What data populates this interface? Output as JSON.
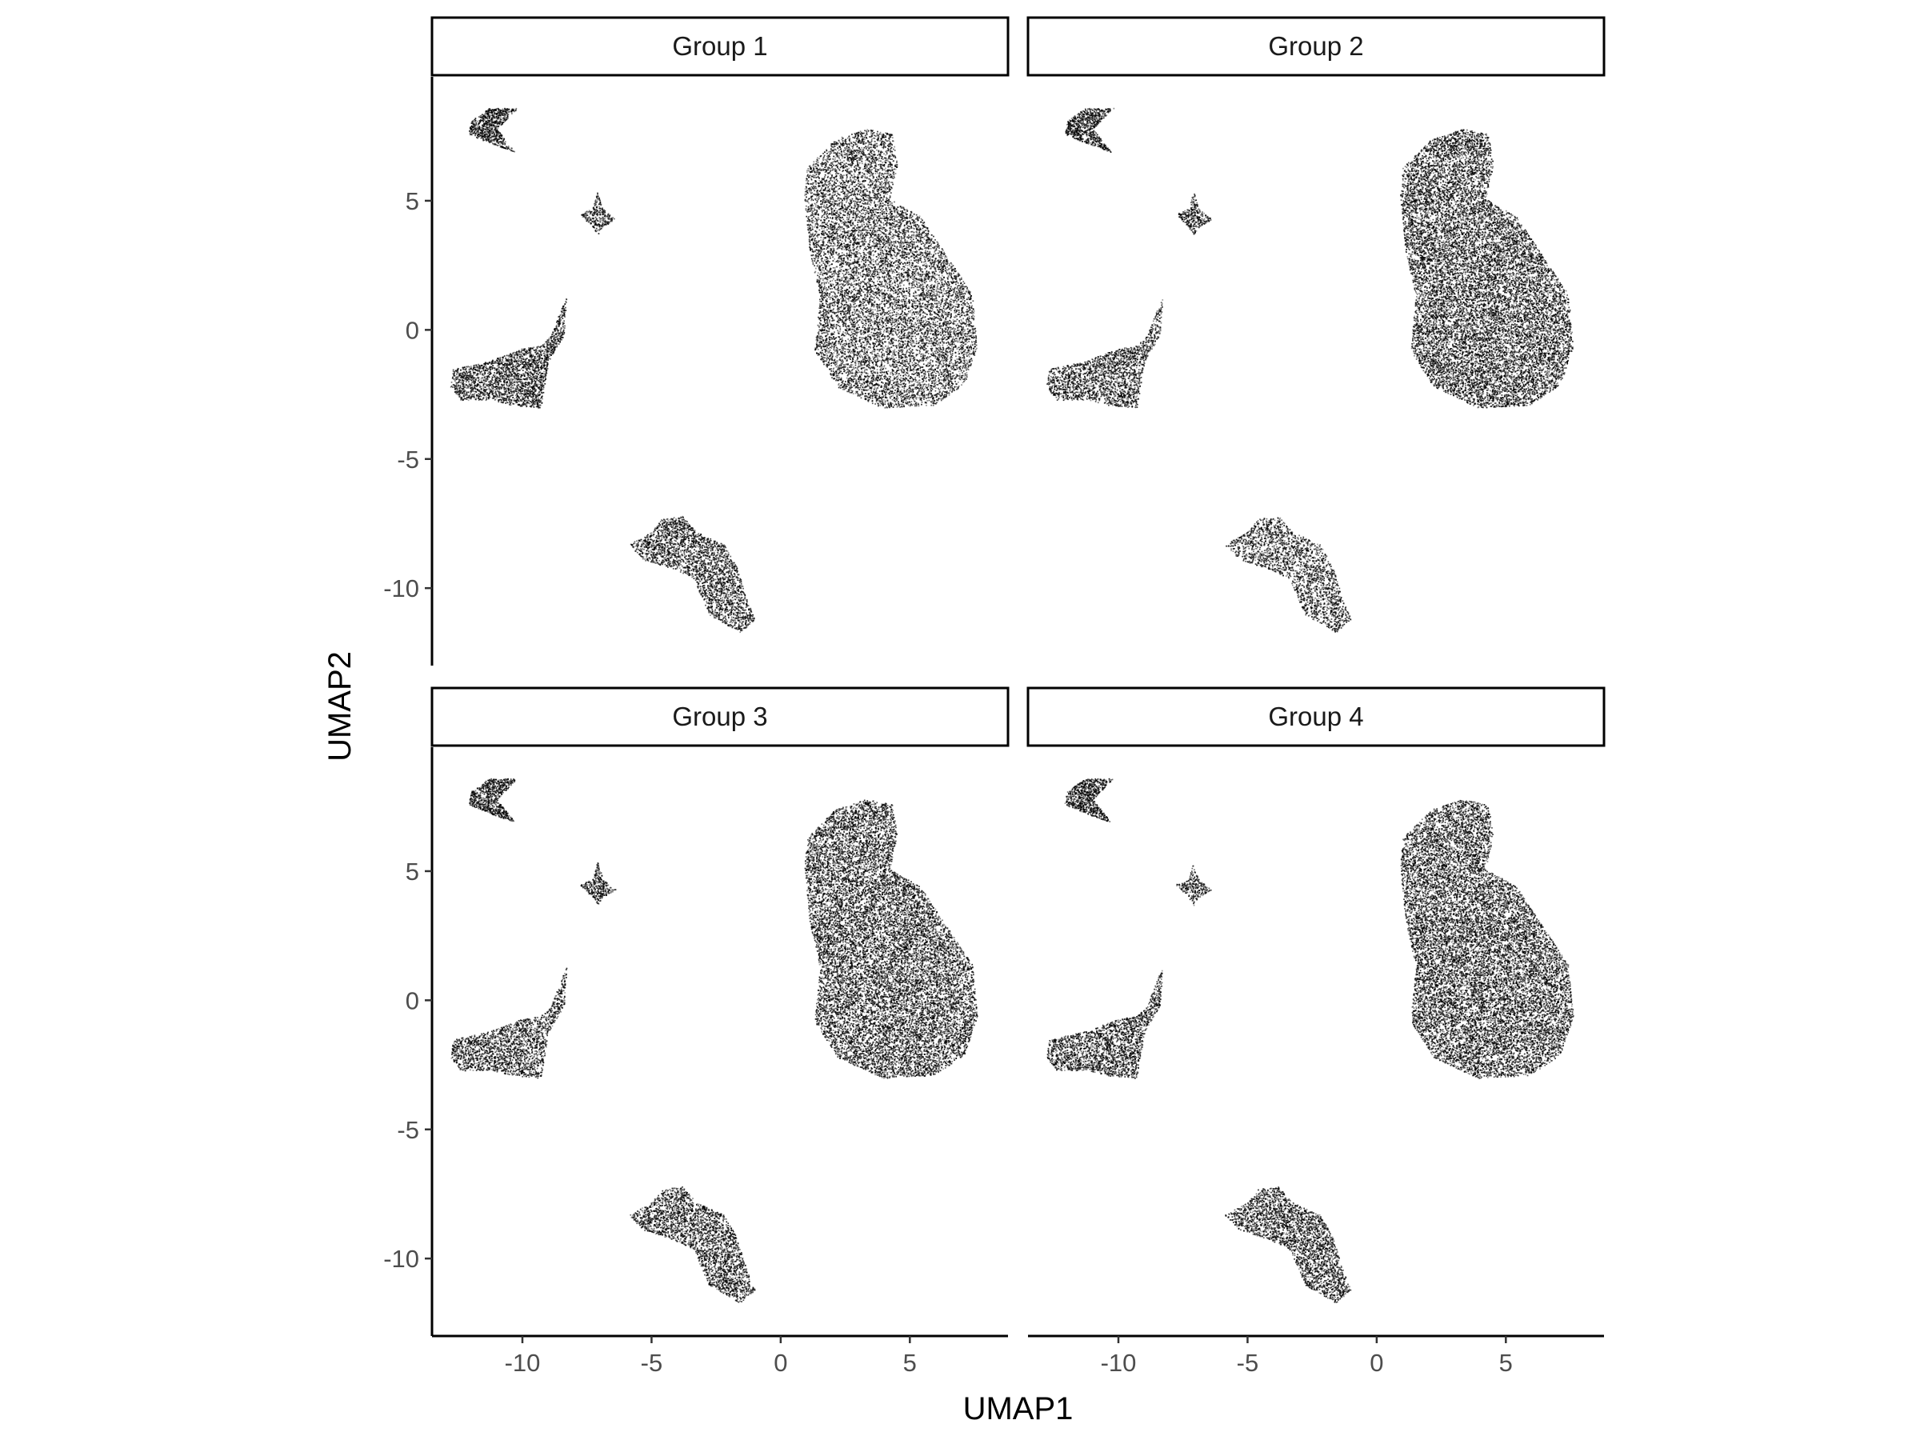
{
  "chart_data": {
    "type": "scatter",
    "xlabel": "UMAP1",
    "ylabel": "UMAP2",
    "xlim": [
      -13.5,
      8.8
    ],
    "ylim": [
      -13.0,
      9.8
    ],
    "x_ticks": [
      -10,
      -5,
      0,
      5
    ],
    "x_tick_labels": [
      "-10",
      "-5",
      "0",
      "5"
    ],
    "y_ticks": [
      -10,
      -5,
      0,
      5
    ],
    "y_tick_labels": [
      "-10",
      "-5",
      "0",
      "5"
    ],
    "grid": false,
    "legend": "none",
    "point_color": "#000000",
    "facets": [
      {
        "label": "Group 1",
        "seed": 11
      },
      {
        "label": "Group 2",
        "seed": 23
      },
      {
        "label": "Group 3",
        "seed": 37
      },
      {
        "label": "Group 4",
        "seed": 53
      }
    ],
    "clusters": [
      {
        "polygon": [
          [
            -12.0,
            8.1
          ],
          [
            -11.3,
            8.6
          ],
          [
            -10.2,
            8.6
          ],
          [
            -11.0,
            7.8
          ],
          [
            -10.3,
            6.9
          ],
          [
            -11.4,
            7.3
          ],
          [
            -12.1,
            7.6
          ]
        ],
        "n": 900
      },
      {
        "polygon": [
          [
            -7.1,
            5.4
          ],
          [
            -6.9,
            4.7
          ],
          [
            -6.4,
            4.3
          ],
          [
            -6.9,
            4.0
          ],
          [
            -7.1,
            3.7
          ],
          [
            -7.3,
            4.0
          ],
          [
            -7.8,
            4.5
          ],
          [
            -7.3,
            4.7
          ]
        ],
        "n": 300
      },
      {
        "polygon": [
          [
            -12.7,
            -1.5
          ],
          [
            -11.3,
            -1.2
          ],
          [
            -10.0,
            -0.7
          ],
          [
            -9.3,
            -0.6
          ],
          [
            -8.9,
            -0.2
          ],
          [
            -8.6,
            0.6
          ],
          [
            -8.3,
            1.3
          ],
          [
            -8.4,
            -0.2
          ],
          [
            -9.0,
            -1.2
          ],
          [
            -9.3,
            -3.0
          ],
          [
            -10.4,
            -2.9
          ],
          [
            -11.2,
            -2.7
          ],
          [
            -12.4,
            -2.7
          ],
          [
            -12.8,
            -2.2
          ]
        ],
        "n": 2400
      },
      {
        "polygon": [
          [
            -5.9,
            -8.3
          ],
          [
            -5.0,
            -7.8
          ],
          [
            -4.6,
            -7.3
          ],
          [
            -3.8,
            -7.2
          ],
          [
            -3.3,
            -7.8
          ],
          [
            -2.2,
            -8.3
          ],
          [
            -1.7,
            -9.2
          ],
          [
            -1.3,
            -10.5
          ],
          [
            -1.0,
            -11.2
          ],
          [
            -1.6,
            -11.7
          ],
          [
            -2.8,
            -11.0
          ],
          [
            -3.4,
            -9.6
          ],
          [
            -4.3,
            -9.2
          ],
          [
            -5.3,
            -8.9
          ]
        ],
        "n": 2600
      },
      {
        "polygon": [
          [
            1.0,
            6.3
          ],
          [
            2.1,
            7.4
          ],
          [
            3.3,
            7.8
          ],
          [
            4.3,
            7.6
          ],
          [
            4.5,
            6.4
          ],
          [
            4.2,
            5.1
          ],
          [
            5.4,
            4.4
          ],
          [
            6.4,
            2.9
          ],
          [
            7.4,
            1.4
          ],
          [
            7.6,
            -0.6
          ],
          [
            7.1,
            -2.1
          ],
          [
            5.9,
            -2.9
          ],
          [
            3.9,
            -3.0
          ],
          [
            2.2,
            -2.2
          ],
          [
            1.3,
            -0.8
          ],
          [
            1.5,
            1.3
          ],
          [
            1.1,
            3.1
          ],
          [
            0.9,
            5.2
          ]
        ],
        "n": 14000
      }
    ]
  }
}
